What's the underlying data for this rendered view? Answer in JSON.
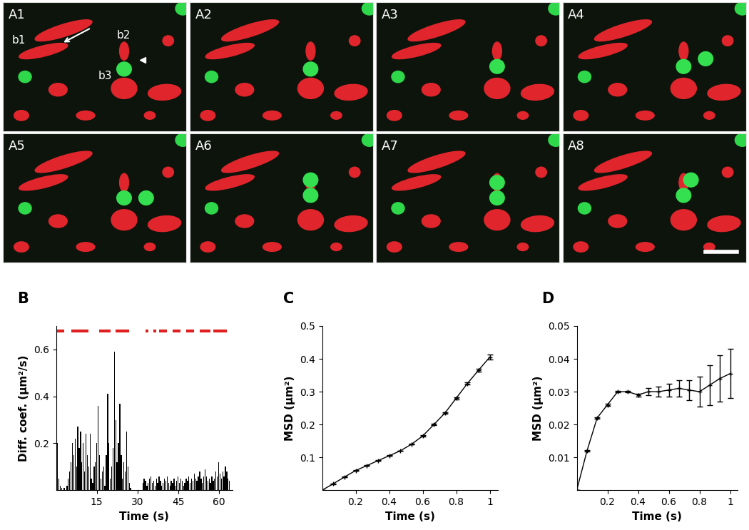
{
  "image_panels": {
    "labels": [
      "A1",
      "A2",
      "A3",
      "A4",
      "A5",
      "A6",
      "A7",
      "A8"
    ],
    "annotations": [
      "b1",
      "b2",
      "b3"
    ]
  },
  "chart_data": [
    {
      "type": "bar",
      "title": "B",
      "xlabel": "Time (s)",
      "ylabel": "Diff. coef. (μm²/s)",
      "x": [
        0.5,
        1.0,
        1.5,
        2.0,
        2.5,
        3.0,
        3.5,
        4.0,
        4.5,
        5.0,
        5.5,
        6.0,
        6.5,
        7.0,
        7.5,
        8.0,
        8.5,
        9.0,
        9.5,
        10.0,
        10.5,
        11.0,
        11.5,
        12.0,
        12.5,
        13.0,
        13.5,
        14.0,
        14.5,
        15.0,
        15.5,
        16.0,
        16.5,
        17.0,
        17.5,
        18.0,
        18.5,
        19.0,
        19.5,
        20.0,
        20.5,
        21.0,
        21.5,
        22.0,
        22.5,
        23.0,
        23.5,
        24.0,
        24.5,
        25.0,
        25.5,
        26.0,
        26.5,
        27.0,
        27.5,
        28.0,
        28.5,
        29.0,
        29.5,
        30.0,
        30.5,
        31.0,
        31.5,
        32.0,
        32.5,
        33.0,
        33.5,
        34.0,
        34.5,
        35.0,
        35.5,
        36.0,
        36.5,
        37.0,
        37.5,
        38.0,
        38.5,
        39.0,
        39.5,
        40.0,
        40.5,
        41.0,
        41.5,
        42.0,
        42.5,
        43.0,
        43.5,
        44.0,
        44.5,
        45.0,
        45.5,
        46.0,
        46.5,
        47.0,
        47.5,
        48.0,
        48.5,
        49.0,
        49.5,
        50.0,
        50.5,
        51.0,
        51.5,
        52.0,
        52.5,
        53.0,
        53.5,
        54.0,
        54.5,
        55.0,
        55.5,
        56.0,
        56.5,
        57.0,
        57.5,
        58.0,
        58.5,
        59.0,
        59.5,
        60.0,
        60.5,
        61.0,
        61.5,
        62.0,
        62.5,
        63.0,
        63.5,
        64.0
      ],
      "values": [
        0.2,
        0.05,
        0.02,
        0.01,
        0.0,
        0.01,
        0.0,
        0.02,
        0.05,
        0.08,
        0.12,
        0.2,
        0.15,
        0.22,
        0.1,
        0.27,
        0.18,
        0.25,
        0.12,
        0.2,
        0.08,
        0.24,
        0.15,
        0.1,
        0.24,
        0.05,
        0.03,
        0.1,
        0.12,
        0.2,
        0.36,
        0.15,
        0.05,
        0.08,
        0.1,
        0.02,
        0.15,
        0.41,
        0.2,
        0.05,
        0.1,
        0.18,
        0.59,
        0.3,
        0.12,
        0.2,
        0.37,
        0.15,
        0.05,
        0.12,
        0.08,
        0.25,
        0.1,
        0.03,
        0.01,
        0.0,
        0.0,
        0.0,
        0.0,
        0.0,
        0.0,
        0.0,
        0.0,
        0.03,
        0.05,
        0.04,
        0.02,
        0.03,
        0.05,
        0.06,
        0.03,
        0.04,
        0.02,
        0.05,
        0.03,
        0.06,
        0.04,
        0.02,
        0.03,
        0.05,
        0.04,
        0.06,
        0.03,
        0.02,
        0.04,
        0.03,
        0.05,
        0.02,
        0.04,
        0.06,
        0.03,
        0.05,
        0.04,
        0.02,
        0.03,
        0.05,
        0.04,
        0.06,
        0.03,
        0.05,
        0.04,
        0.07,
        0.05,
        0.04,
        0.06,
        0.08,
        0.05,
        0.03,
        0.06,
        0.09,
        0.06,
        0.04,
        0.05,
        0.03,
        0.06,
        0.04,
        0.05,
        0.08,
        0.06,
        0.12,
        0.07,
        0.05,
        0.08,
        0.06,
        0.1,
        0.08,
        0.05,
        0.04
      ],
      "color": "#000000",
      "xlim": [
        0,
        65
      ],
      "xticks": [
        15,
        30,
        45,
        60
      ],
      "ylim": [
        0,
        0.7
      ],
      "yticks": [
        0.2,
        0.4,
        0.6
      ],
      "segments": {
        "y": 0.68,
        "color": "#e02020",
        "intervals": [
          [
            0,
            3
          ],
          [
            5.5,
            12
          ],
          [
            16,
            20
          ],
          [
            22,
            27
          ],
          [
            33,
            34
          ],
          [
            36,
            37
          ],
          [
            38,
            41
          ],
          [
            43,
            46
          ],
          [
            48,
            51
          ],
          [
            53,
            57
          ],
          [
            58,
            63
          ]
        ]
      }
    },
    {
      "type": "line",
      "title": "C",
      "xlabel": "Time (s)",
      "ylabel": "MSD (μm²)",
      "x": [
        0,
        0.067,
        0.133,
        0.2,
        0.267,
        0.333,
        0.4,
        0.467,
        0.533,
        0.6,
        0.667,
        0.733,
        0.8,
        0.867,
        0.933,
        1.0
      ],
      "values": [
        0,
        0.02,
        0.04,
        0.06,
        0.075,
        0.09,
        0.105,
        0.12,
        0.14,
        0.165,
        0.2,
        0.235,
        0.28,
        0.325,
        0.365,
        0.405
      ],
      "errors": [
        0,
        0.001,
        0.001,
        0.001,
        0.001,
        0.001,
        0.001,
        0.001,
        0.001,
        0.002,
        0.002,
        0.002,
        0.003,
        0.004,
        0.005,
        0.008
      ],
      "color": "#000000",
      "marker": "plus",
      "xlim": [
        0,
        1.05
      ],
      "xticks": [
        0.2,
        0.4,
        0.6,
        0.8,
        1
      ],
      "ylim": [
        0,
        0.5
      ],
      "yticks": [
        0.1,
        0.2,
        0.3,
        0.4,
        0.5
      ]
    },
    {
      "type": "line",
      "title": "D",
      "xlabel": "Time (s)",
      "ylabel": "MSD (μm²)",
      "x": [
        0,
        0.067,
        0.133,
        0.2,
        0.267,
        0.333,
        0.4,
        0.467,
        0.533,
        0.6,
        0.667,
        0.733,
        0.8,
        0.867,
        0.933,
        1.0
      ],
      "values": [
        0,
        0.012,
        0.022,
        0.026,
        0.03,
        0.03,
        0.029,
        0.03,
        0.03,
        0.0305,
        0.031,
        0.0305,
        0.03,
        0.032,
        0.034,
        0.0355
      ],
      "errors": [
        0,
        0.0003,
        0.0003,
        0.0003,
        0.0003,
        0.0003,
        0.0004,
        0.001,
        0.0015,
        0.002,
        0.0025,
        0.003,
        0.0045,
        0.006,
        0.007,
        0.0075
      ],
      "color": "#000000",
      "marker": "plus",
      "xlim": [
        0,
        1.05
      ],
      "xticks": [
        0.2,
        0.4,
        0.6,
        0.8,
        1
      ],
      "ylim": [
        0,
        0.05
      ],
      "yticks": [
        0.01,
        0.02,
        0.03,
        0.04,
        0.05
      ]
    }
  ]
}
